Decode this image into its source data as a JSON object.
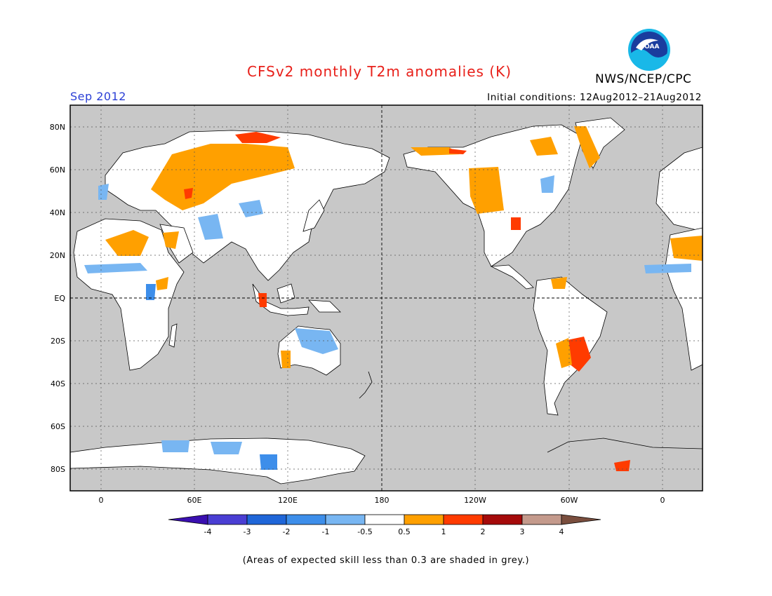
{
  "title": "CFSv2 monthly T2m anomalies (K)",
  "month": "Sep 2012",
  "initial_conditions": "Initial conditions: 12Aug2012–21Aug2012",
  "agency": "NWS/NCEP/CPC",
  "logo_text": "NOAA",
  "footnote": "(Areas of expected skill less than 0.3 are shaded in grey.)",
  "axes": {
    "lat_labels": [
      "80N",
      "60N",
      "40N",
      "20N",
      "EQ",
      "20S",
      "40S",
      "60S",
      "80S"
    ],
    "lon_labels": [
      "0",
      "60E",
      "120E",
      "180",
      "120W",
      "60W",
      "0"
    ]
  },
  "colorbar": {
    "labels": [
      "-4",
      "-3",
      "-2",
      "-1",
      "-0.5",
      "0.5",
      "1",
      "2",
      "3",
      "4"
    ],
    "colors": [
      "#3a0fb0",
      "#4a3ed3",
      "#1f66d8",
      "#3d8eea",
      "#78b6f2",
      "#ffffff",
      "#ffa000",
      "#ff3b00",
      "#a50a0a",
      "#c49a8c",
      "#7a4e3e"
    ]
  },
  "colors": {
    "ocean_grey": "#c8c8c8",
    "land_white": "#ffffff",
    "title_red": "#e8201a",
    "month_blue": "#2b3fd6"
  }
}
